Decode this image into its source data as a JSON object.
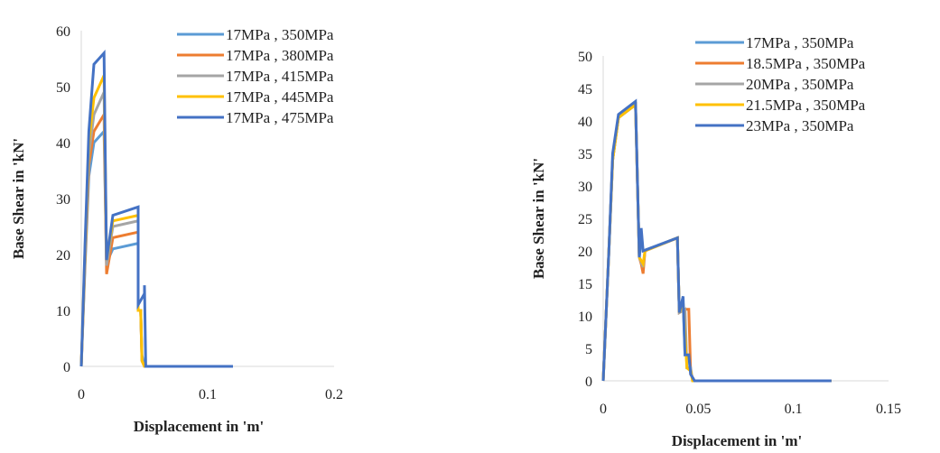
{
  "chart_data": [
    {
      "type": "line",
      "title": "",
      "xlabel": "Displacement in 'm'",
      "ylabel": "Base Shear in 'kN'",
      "xlim": [
        0,
        0.2
      ],
      "ylim": [
        0,
        60
      ],
      "xticks": [
        0,
        0.1,
        0.2
      ],
      "yticks": [
        0,
        10,
        20,
        30,
        40,
        50,
        60
      ],
      "xtick_labels": [
        "0",
        "0.1",
        "0.2"
      ],
      "ytick_labels": [
        "0",
        "10",
        "20",
        "30",
        "40",
        "50",
        "60"
      ],
      "grid": false,
      "legend_position": "top-right",
      "series": [
        {
          "name": "17MPa , 350MPa",
          "color": "#5B9BD5",
          "points": [
            [
              0,
              0
            ],
            [
              0.003,
              18
            ],
            [
              0.006,
              34
            ],
            [
              0.01,
              40
            ],
            [
              0.018,
              42
            ],
            [
              0.02,
              18.5
            ],
            [
              0.025,
              21
            ],
            [
              0.045,
              22
            ],
            [
              0.045,
              10
            ],
            [
              0.047,
              10
            ],
            [
              0.048,
              2
            ],
            [
              0.05,
              0
            ],
            [
              0.12,
              0
            ]
          ]
        },
        {
          "name": "17MPa , 380MPa",
          "color": "#ED7D31",
          "points": [
            [
              0,
              0
            ],
            [
              0.003,
              19
            ],
            [
              0.006,
              36
            ],
            [
              0.01,
              42
            ],
            [
              0.018,
              45
            ],
            [
              0.02,
              16.5
            ],
            [
              0.025,
              23
            ],
            [
              0.045,
              24
            ],
            [
              0.045,
              10
            ],
            [
              0.047,
              10
            ],
            [
              0.048,
              1
            ],
            [
              0.05,
              0
            ],
            [
              0.12,
              0
            ]
          ]
        },
        {
          "name": "17MPa , 415MPa",
          "color": "#A5A5A5",
          "points": [
            [
              0,
              0
            ],
            [
              0.003,
              20
            ],
            [
              0.006,
              38
            ],
            [
              0.01,
              45
            ],
            [
              0.018,
              49
            ],
            [
              0.02,
              18
            ],
            [
              0.025,
              25
            ],
            [
              0.045,
              26
            ],
            [
              0.045,
              10
            ],
            [
              0.047,
              10
            ],
            [
              0.048,
              1
            ],
            [
              0.05,
              0
            ],
            [
              0.12,
              0
            ]
          ]
        },
        {
          "name": "17MPa , 445MPa",
          "color": "#FFC000",
          "points": [
            [
              0,
              0
            ],
            [
              0.003,
              21
            ],
            [
              0.006,
              40
            ],
            [
              0.01,
              48
            ],
            [
              0.018,
              52
            ],
            [
              0.02,
              19
            ],
            [
              0.025,
              26
            ],
            [
              0.045,
              27
            ],
            [
              0.045,
              10
            ],
            [
              0.047,
              10
            ],
            [
              0.048,
              1
            ],
            [
              0.05,
              0
            ],
            [
              0.12,
              0
            ]
          ]
        },
        {
          "name": "17MPa , 475MPa",
          "color": "#4472C4",
          "points": [
            [
              0,
              0
            ],
            [
              0.003,
              22
            ],
            [
              0.006,
              42
            ],
            [
              0.01,
              54
            ],
            [
              0.018,
              56
            ],
            [
              0.02,
              19
            ],
            [
              0.025,
              27
            ],
            [
              0.045,
              28.5
            ],
            [
              0.045,
              11
            ],
            [
              0.05,
              13
            ],
            [
              0.05,
              14.5
            ],
            [
              0.051,
              0
            ],
            [
              0.12,
              0
            ]
          ]
        }
      ]
    },
    {
      "type": "line",
      "title": "",
      "xlabel": "Displacement in 'm'",
      "ylabel": "Base Shear in 'kN'",
      "xlim": [
        0,
        0.15
      ],
      "ylim": [
        0,
        50
      ],
      "xticks": [
        0,
        0.05,
        0.1,
        0.15
      ],
      "yticks": [
        0,
        5,
        10,
        15,
        20,
        25,
        30,
        35,
        40,
        45,
        50
      ],
      "xtick_labels": [
        "0",
        "0.05",
        "0.1",
        "0.15"
      ],
      "ytick_labels": [
        "0",
        "5",
        "10",
        "15",
        "20",
        "25",
        "30",
        "35",
        "40",
        "45",
        "50"
      ],
      "grid": false,
      "legend_position": "top-right",
      "series": [
        {
          "name": "17MPa , 350MPa",
          "color": "#5B9BD5",
          "points": [
            [
              0,
              0
            ],
            [
              0.003,
              20
            ],
            [
              0.005,
              34
            ],
            [
              0.008,
              40.5
            ],
            [
              0.017,
              42.5
            ],
            [
              0.019,
              19
            ],
            [
              0.02,
              22
            ],
            [
              0.021,
              20
            ],
            [
              0.039,
              22
            ],
            [
              0.04,
              10.5
            ],
            [
              0.042,
              12
            ],
            [
              0.043,
              4
            ],
            [
              0.045,
              4
            ],
            [
              0.046,
              1
            ],
            [
              0.048,
              0
            ],
            [
              0.12,
              0
            ]
          ]
        },
        {
          "name": "18.5MPa , 350MPa",
          "color": "#ED7D31",
          "points": [
            [
              0,
              0
            ],
            [
              0.003,
              20
            ],
            [
              0.005,
              34
            ],
            [
              0.008,
              40.5
            ],
            [
              0.017,
              42.5
            ],
            [
              0.019,
              19
            ],
            [
              0.02,
              18
            ],
            [
              0.021,
              16.5
            ],
            [
              0.022,
              20
            ],
            [
              0.039,
              22
            ],
            [
              0.04,
              10.5
            ],
            [
              0.043,
              11
            ],
            [
              0.045,
              11
            ],
            [
              0.046,
              1
            ],
            [
              0.048,
              0
            ],
            [
              0.12,
              0
            ]
          ]
        },
        {
          "name": "20MPa , 350MPa",
          "color": "#A5A5A5",
          "points": [
            [
              0,
              0
            ],
            [
              0.003,
              20
            ],
            [
              0.005,
              34
            ],
            [
              0.008,
              40.5
            ],
            [
              0.017,
              42.5
            ],
            [
              0.019,
              19
            ],
            [
              0.021,
              17.5
            ],
            [
              0.022,
              20
            ],
            [
              0.039,
              22
            ],
            [
              0.04,
              10.5
            ],
            [
              0.043,
              11
            ],
            [
              0.044,
              2
            ],
            [
              0.046,
              2
            ],
            [
              0.047,
              0
            ],
            [
              0.12,
              0
            ]
          ]
        },
        {
          "name": "21.5MPa , 350MPa",
          "color": "#FFC000",
          "points": [
            [
              0,
              0
            ],
            [
              0.003,
              20
            ],
            [
              0.005,
              34
            ],
            [
              0.008,
              40.5
            ],
            [
              0.017,
              42.5
            ],
            [
              0.019,
              19
            ],
            [
              0.021,
              18
            ],
            [
              0.022,
              20
            ],
            [
              0.039,
              22
            ],
            [
              0.04,
              10.5
            ],
            [
              0.042,
              12
            ],
            [
              0.044,
              2
            ],
            [
              0.046,
              1.5
            ],
            [
              0.047,
              0
            ],
            [
              0.12,
              0
            ]
          ]
        },
        {
          "name": "23MPa , 350MPa",
          "color": "#4472C4",
          "points": [
            [
              0,
              0
            ],
            [
              0.003,
              20
            ],
            [
              0.005,
              35
            ],
            [
              0.008,
              41
            ],
            [
              0.017,
              43
            ],
            [
              0.019,
              19
            ],
            [
              0.02,
              23.5
            ],
            [
              0.021,
              20
            ],
            [
              0.039,
              22
            ],
            [
              0.04,
              10.5
            ],
            [
              0.042,
              13
            ],
            [
              0.043,
              4
            ],
            [
              0.045,
              4
            ],
            [
              0.046,
              1
            ],
            [
              0.048,
              0
            ],
            [
              0.12,
              0
            ]
          ]
        }
      ]
    }
  ]
}
